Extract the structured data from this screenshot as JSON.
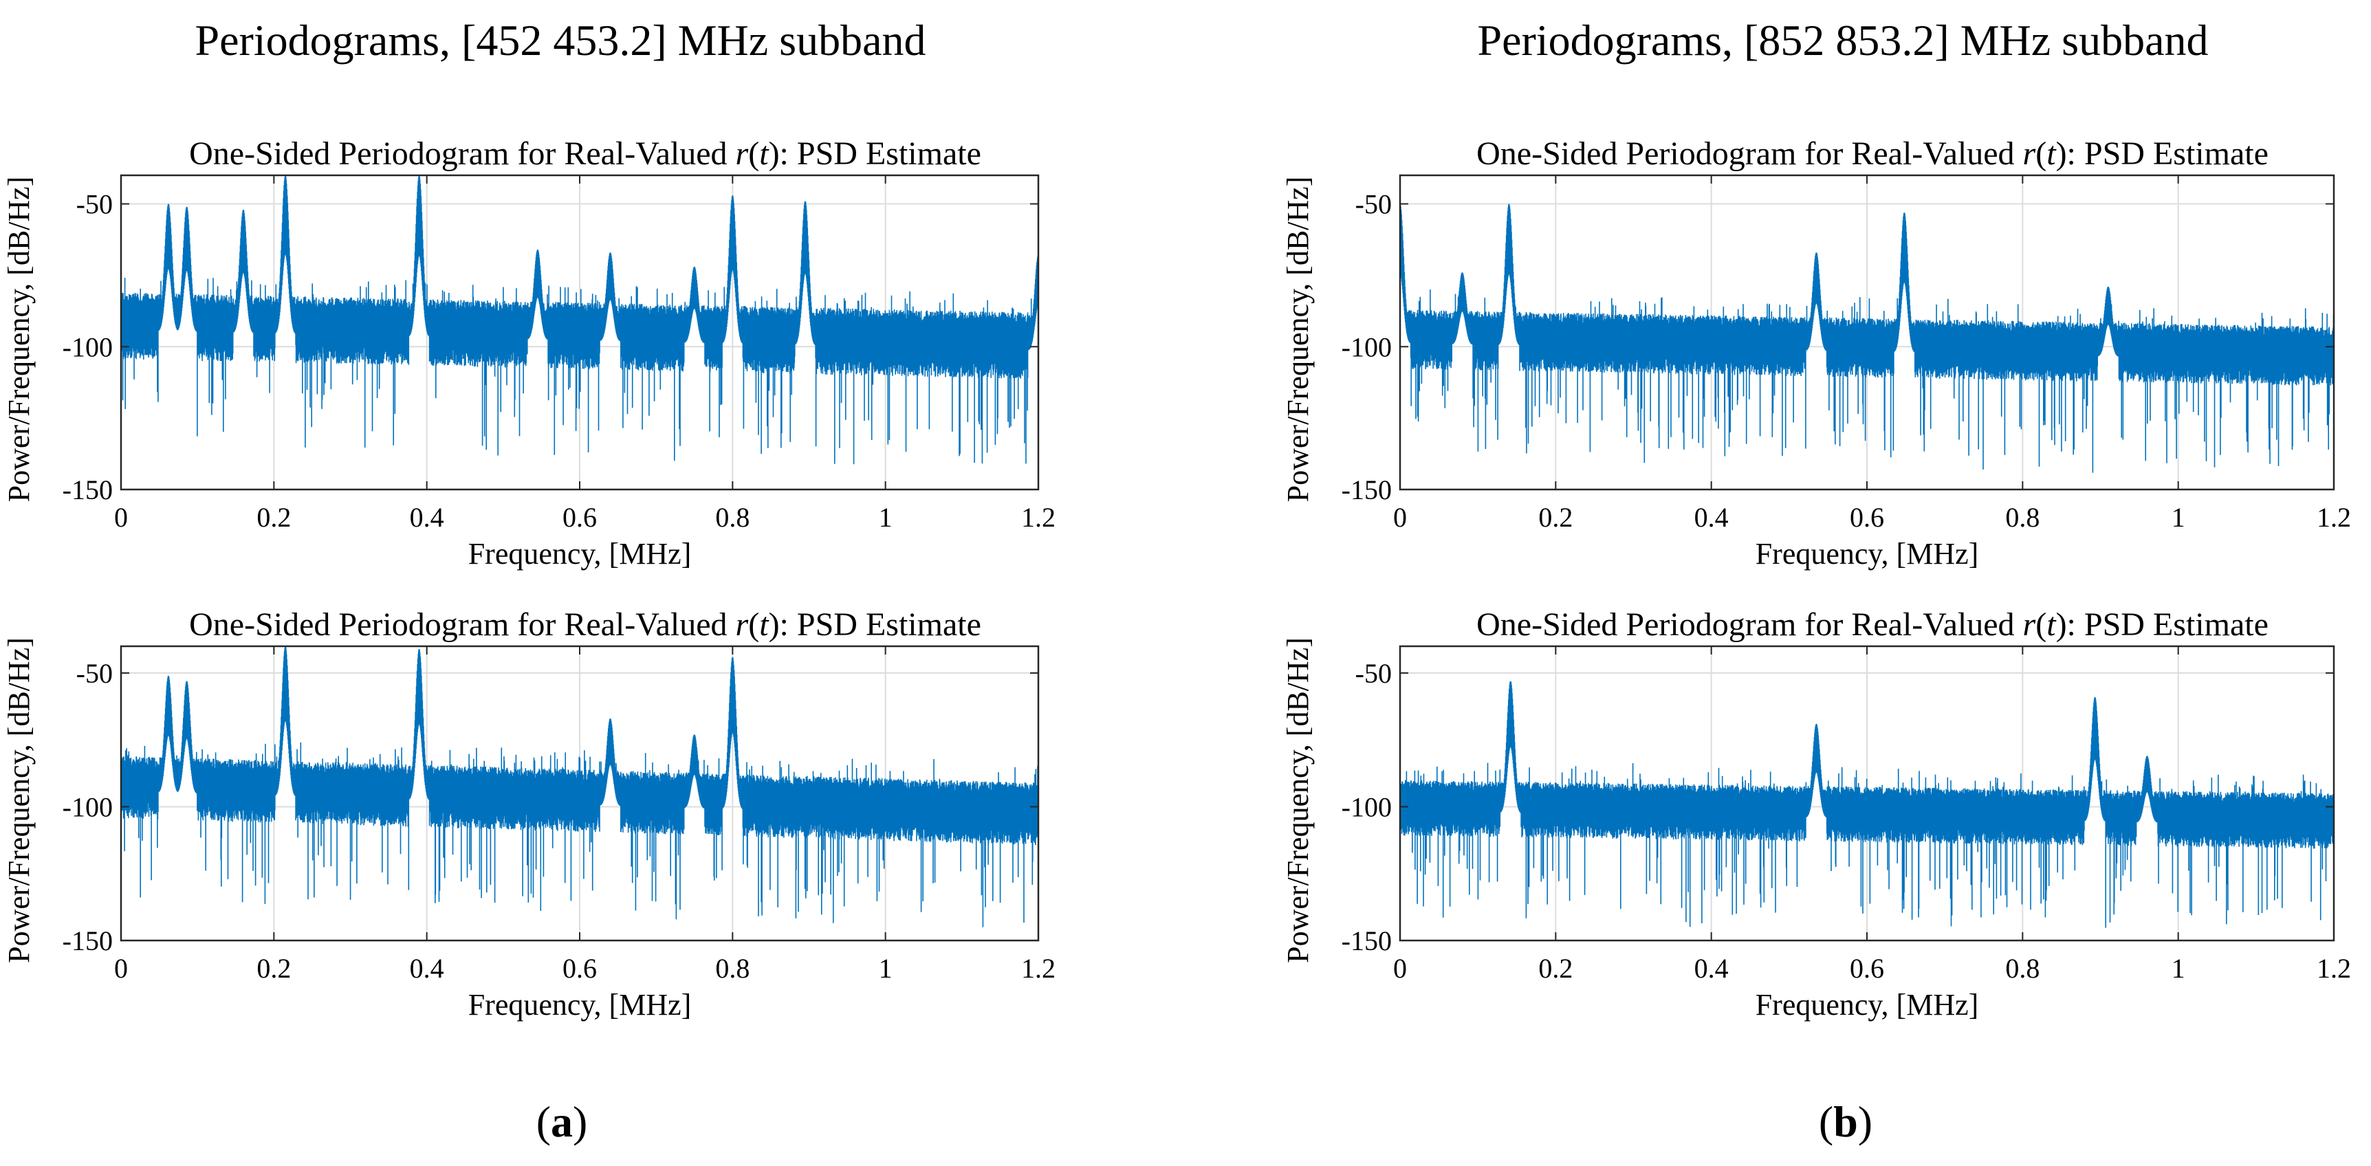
{
  "figure": {
    "title_a": "Periodograms, [452 453.2] MHz subband",
    "title_b": "Periodograms, [852 853.2] MHz subband",
    "label_a": {
      "open": "(",
      "letter": "a",
      "close": ")"
    },
    "label_b": {
      "open": "(",
      "letter": "b",
      "close": ")"
    }
  },
  "colors": {
    "series": "#0072BD",
    "grid": "#dcdcdc",
    "axis": "#262626"
  },
  "chart_data": [
    {
      "type": "line",
      "panel": "a-top",
      "title": {
        "prefix": "One-Sided Periodogram for Real-Valued ",
        "r": "r",
        "open": "(",
        "t": "t",
        "suffix": "): PSD Estimate"
      },
      "xlabel": "Frequency, [MHz]",
      "ylabel": "Power/Frequency, [dB/Hz]",
      "xlim": [
        0,
        1.2
      ],
      "ylim": [
        -150,
        -40
      ],
      "xticks": [
        0,
        0.2,
        0.4,
        0.6,
        0.8,
        1,
        1.2
      ],
      "xtick_labels": [
        "0",
        "0.2",
        "0.4",
        "0.6",
        "0.8",
        "1",
        "1.2"
      ],
      "yticks": [
        -150,
        -100,
        -50
      ],
      "ytick_labels": [
        "-150",
        "-100",
        "-50"
      ],
      "grid": true,
      "series": [
        {
          "name": "PSD",
          "noise_floor": {
            "start": [
              0,
              -90
            ],
            "end": [
              1.2,
              -97
            ],
            "spread_db": 9
          },
          "peaks": [
            {
              "f": 0.062,
              "level": -50
            },
            {
              "f": 0.086,
              "level": -51
            },
            {
              "f": 0.16,
              "level": -52
            },
            {
              "f": 0.215,
              "level": -40
            },
            {
              "f": 0.39,
              "level": -40
            },
            {
              "f": 0.545,
              "level": -66
            },
            {
              "f": 0.64,
              "level": -67
            },
            {
              "f": 0.75,
              "level": -72
            },
            {
              "f": 0.8,
              "level": -47
            },
            {
              "f": 0.895,
              "level": -49
            },
            {
              "f": 1.2,
              "level": -68
            }
          ]
        }
      ]
    },
    {
      "type": "line",
      "panel": "a-bottom",
      "title": {
        "prefix": "One-Sided Periodogram for Real-Valued ",
        "r": "r",
        "open": "(",
        "t": "t",
        "suffix": "): PSD Estimate"
      },
      "xlabel": "Frequency, [MHz]",
      "ylabel": "Power/Frequency, [dB/Hz]",
      "xlim": [
        0,
        1.2
      ],
      "ylim": [
        -150,
        -40
      ],
      "xticks": [
        0,
        0.2,
        0.4,
        0.6,
        0.8,
        1,
        1.2
      ],
      "xtick_labels": [
        "0",
        "0.2",
        "0.4",
        "0.6",
        "0.8",
        "1",
        "1.2"
      ],
      "yticks": [
        -150,
        -100,
        -50
      ],
      "ytick_labels": [
        "-150",
        "-100",
        "-50"
      ],
      "grid": true,
      "series": [
        {
          "name": "PSD",
          "noise_floor": {
            "start": [
              0,
              -90
            ],
            "end": [
              1.2,
              -100
            ],
            "spread_db": 9
          },
          "peaks": [
            {
              "f": 0.062,
              "level": -51
            },
            {
              "f": 0.086,
              "level": -53
            },
            {
              "f": 0.215,
              "level": -40
            },
            {
              "f": 0.39,
              "level": -41
            },
            {
              "f": 0.64,
              "level": -67
            },
            {
              "f": 0.75,
              "level": -73
            },
            {
              "f": 0.8,
              "level": -44
            }
          ]
        }
      ]
    },
    {
      "type": "line",
      "panel": "b-top",
      "title": {
        "prefix": "One-Sided Periodogram for Real-Valued ",
        "r": "r",
        "open": "(",
        "t": "t",
        "suffix": "): PSD Estimate"
      },
      "xlabel": "Frequency, [MHz]",
      "ylabel": "Power/Frequency, [dB/Hz]",
      "xlim": [
        0,
        1.2
      ],
      "ylim": [
        -150,
        -40
      ],
      "xticks": [
        0,
        0.2,
        0.4,
        0.6,
        0.8,
        1,
        1.2
      ],
      "xtick_labels": [
        "0",
        "0.2",
        "0.4",
        "0.6",
        "0.8",
        "1",
        "1.2"
      ],
      "yticks": [
        -150,
        -100,
        -50
      ],
      "ytick_labels": [
        "-150",
        "-100",
        "-50"
      ],
      "grid": true,
      "series": [
        {
          "name": "PSD",
          "noise_floor": {
            "start": [
              0,
              -95
            ],
            "end": [
              1.2,
              -101
            ],
            "spread_db": 8
          },
          "peaks": [
            {
              "f": 0.0,
              "level": -50
            },
            {
              "f": 0.08,
              "level": -74
            },
            {
              "f": 0.14,
              "level": -50
            },
            {
              "f": 0.535,
              "level": -67
            },
            {
              "f": 0.648,
              "level": -53
            },
            {
              "f": 0.91,
              "level": -79
            }
          ]
        }
      ]
    },
    {
      "type": "line",
      "panel": "b-bottom",
      "title": {
        "prefix": "One-Sided Periodogram for Real-Valued ",
        "r": "r",
        "open": "(",
        "t": "t",
        "suffix": "): PSD Estimate"
      },
      "xlabel": "Frequency, [MHz]",
      "ylabel": "Power/Frequency, [dB/Hz]",
      "xlim": [
        0,
        1.2
      ],
      "ylim": [
        -150,
        -40
      ],
      "xticks": [
        0,
        0.2,
        0.4,
        0.6,
        0.8,
        1,
        1.2
      ],
      "xtick_labels": [
        "0",
        "0.2",
        "0.4",
        "0.6",
        "0.8",
        "1",
        "1.2"
      ],
      "yticks": [
        -150,
        -100,
        -50
      ],
      "ytick_labels": [
        "-150",
        "-100",
        "-50"
      ],
      "grid": true,
      "series": [
        {
          "name": "PSD",
          "noise_floor": {
            "start": [
              0,
              -98
            ],
            "end": [
              1.2,
              -103
            ],
            "spread_db": 8
          },
          "peaks": [
            {
              "f": 0.142,
              "level": -53
            },
            {
              "f": 0.535,
              "level": -69
            },
            {
              "f": 0.893,
              "level": -59
            },
            {
              "f": 0.96,
              "level": -81
            }
          ]
        }
      ]
    }
  ]
}
